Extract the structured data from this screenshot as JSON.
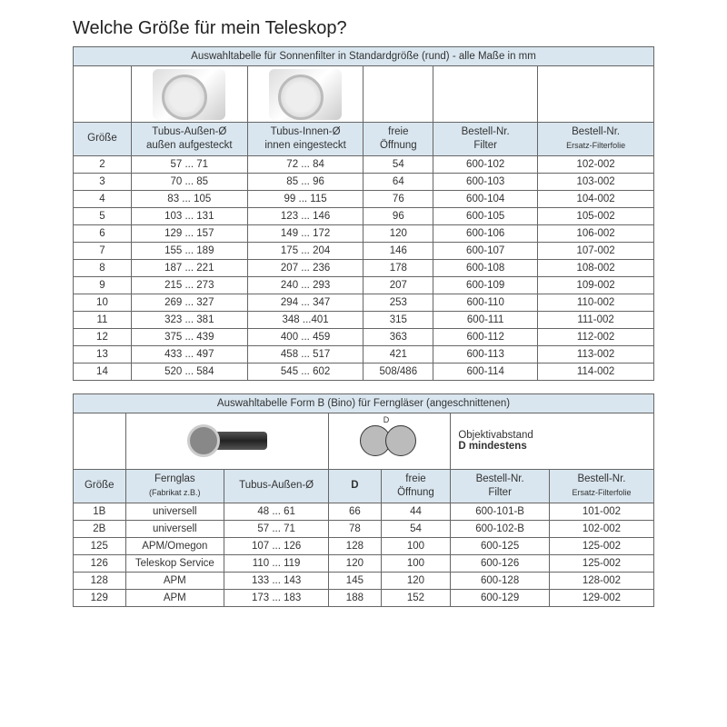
{
  "title": "Welche Größe für mein Teleskop?",
  "table1": {
    "caption": "Auswahltabelle für Sonnenfilter in Standardgröße (rund) - alle Maße in mm",
    "headers": {
      "c1": "Größe",
      "c2a": "Tubus-Außen-Ø",
      "c2b": "außen aufgesteckt",
      "c3a": "Tubus-Innen-Ø",
      "c3b": "innen eingesteckt",
      "c4a": "freie",
      "c4b": "Öffnung",
      "c5a": "Bestell-Nr.",
      "c5b": "Filter",
      "c6a": "Bestell-Nr.",
      "c6b": "Ersatz-Filterfolie"
    },
    "col_widths": [
      "10%",
      "20%",
      "20%",
      "12%",
      "18%",
      "20%"
    ],
    "header_bg": "#d9e6ef",
    "border_color": "#666666",
    "rows": [
      [
        "2",
        "57 ... 71",
        "72 ... 84",
        "54",
        "600-102",
        "102-002"
      ],
      [
        "3",
        "70 ... 85",
        "85 ... 96",
        "64",
        "600-103",
        "103-002"
      ],
      [
        "4",
        "83 ... 105",
        "99 ... 115",
        "76",
        "600-104",
        "104-002"
      ],
      [
        "5",
        "103 ... 131",
        "123 ... 146",
        "96",
        "600-105",
        "105-002"
      ],
      [
        "6",
        "129 ... 157",
        "149 ... 172",
        "120",
        "600-106",
        "106-002"
      ],
      [
        "7",
        "155 ... 189",
        "175 ... 204",
        "146",
        "600-107",
        "107-002"
      ],
      [
        "8",
        "187 ... 221",
        "207 ... 236",
        "178",
        "600-108",
        "108-002"
      ],
      [
        "9",
        "215 ... 273",
        "240 ... 293",
        "207",
        "600-109",
        "109-002"
      ],
      [
        "10",
        "269 ... 327",
        "294 ... 347",
        "253",
        "600-110",
        "110-002"
      ],
      [
        "11",
        "323 ... 381",
        "348 ...401",
        "315",
        "600-111",
        "111-002"
      ],
      [
        "12",
        "375 ... 439",
        "400 ... 459",
        "363",
        "600-112",
        "112-002"
      ],
      [
        "13",
        "433 ... 497",
        "458 ... 517",
        "421",
        "600-113",
        "113-002"
      ],
      [
        "14",
        "520 ... 584",
        "545 ... 602",
        "508/486",
        "600-114",
        "114-002"
      ]
    ]
  },
  "table2": {
    "caption": "Auswahltabelle Form B (Bino) für Ferngläser  (angeschnittenen)",
    "diagram_label_a": "Objektivabstand",
    "diagram_label_b": "D mindestens",
    "diagram_d": "D",
    "headers": {
      "c1": "Größe",
      "c2a": "Fernglas",
      "c2b": "(Fabrikat z.B.)",
      "c3": "Tubus-Außen-Ø",
      "c4": "D",
      "c5a": "freie",
      "c5b": "Öffnung",
      "c6a": "Bestell-Nr.",
      "c6b": "Filter",
      "c7a": "Bestell-Nr.",
      "c7b": "Ersatz-Filterfolie"
    },
    "col_widths": [
      "9%",
      "17%",
      "18%",
      "9%",
      "12%",
      "17%",
      "18%"
    ],
    "header_bg": "#d9e6ef",
    "border_color": "#666666",
    "rows": [
      [
        "1B",
        "universell",
        "48 ... 61",
        "66",
        "44",
        "600-101-B",
        "101-002"
      ],
      [
        "2B",
        "universell",
        "57 ... 71",
        "78",
        "54",
        "600-102-B",
        "102-002"
      ],
      [
        "125",
        "APM/Omegon",
        "107 ... 126",
        "128",
        "100",
        "600-125",
        "125-002"
      ],
      [
        "126",
        "Teleskop Service",
        "110 ... 119",
        "120",
        "100",
        "600-126",
        "125-002"
      ],
      [
        "128",
        "APM",
        "133 ... 143",
        "145",
        "120",
        "600-128",
        "128-002"
      ],
      [
        "129",
        "APM",
        "173 ... 183",
        "188",
        "152",
        "600-129",
        "129-002"
      ]
    ]
  }
}
